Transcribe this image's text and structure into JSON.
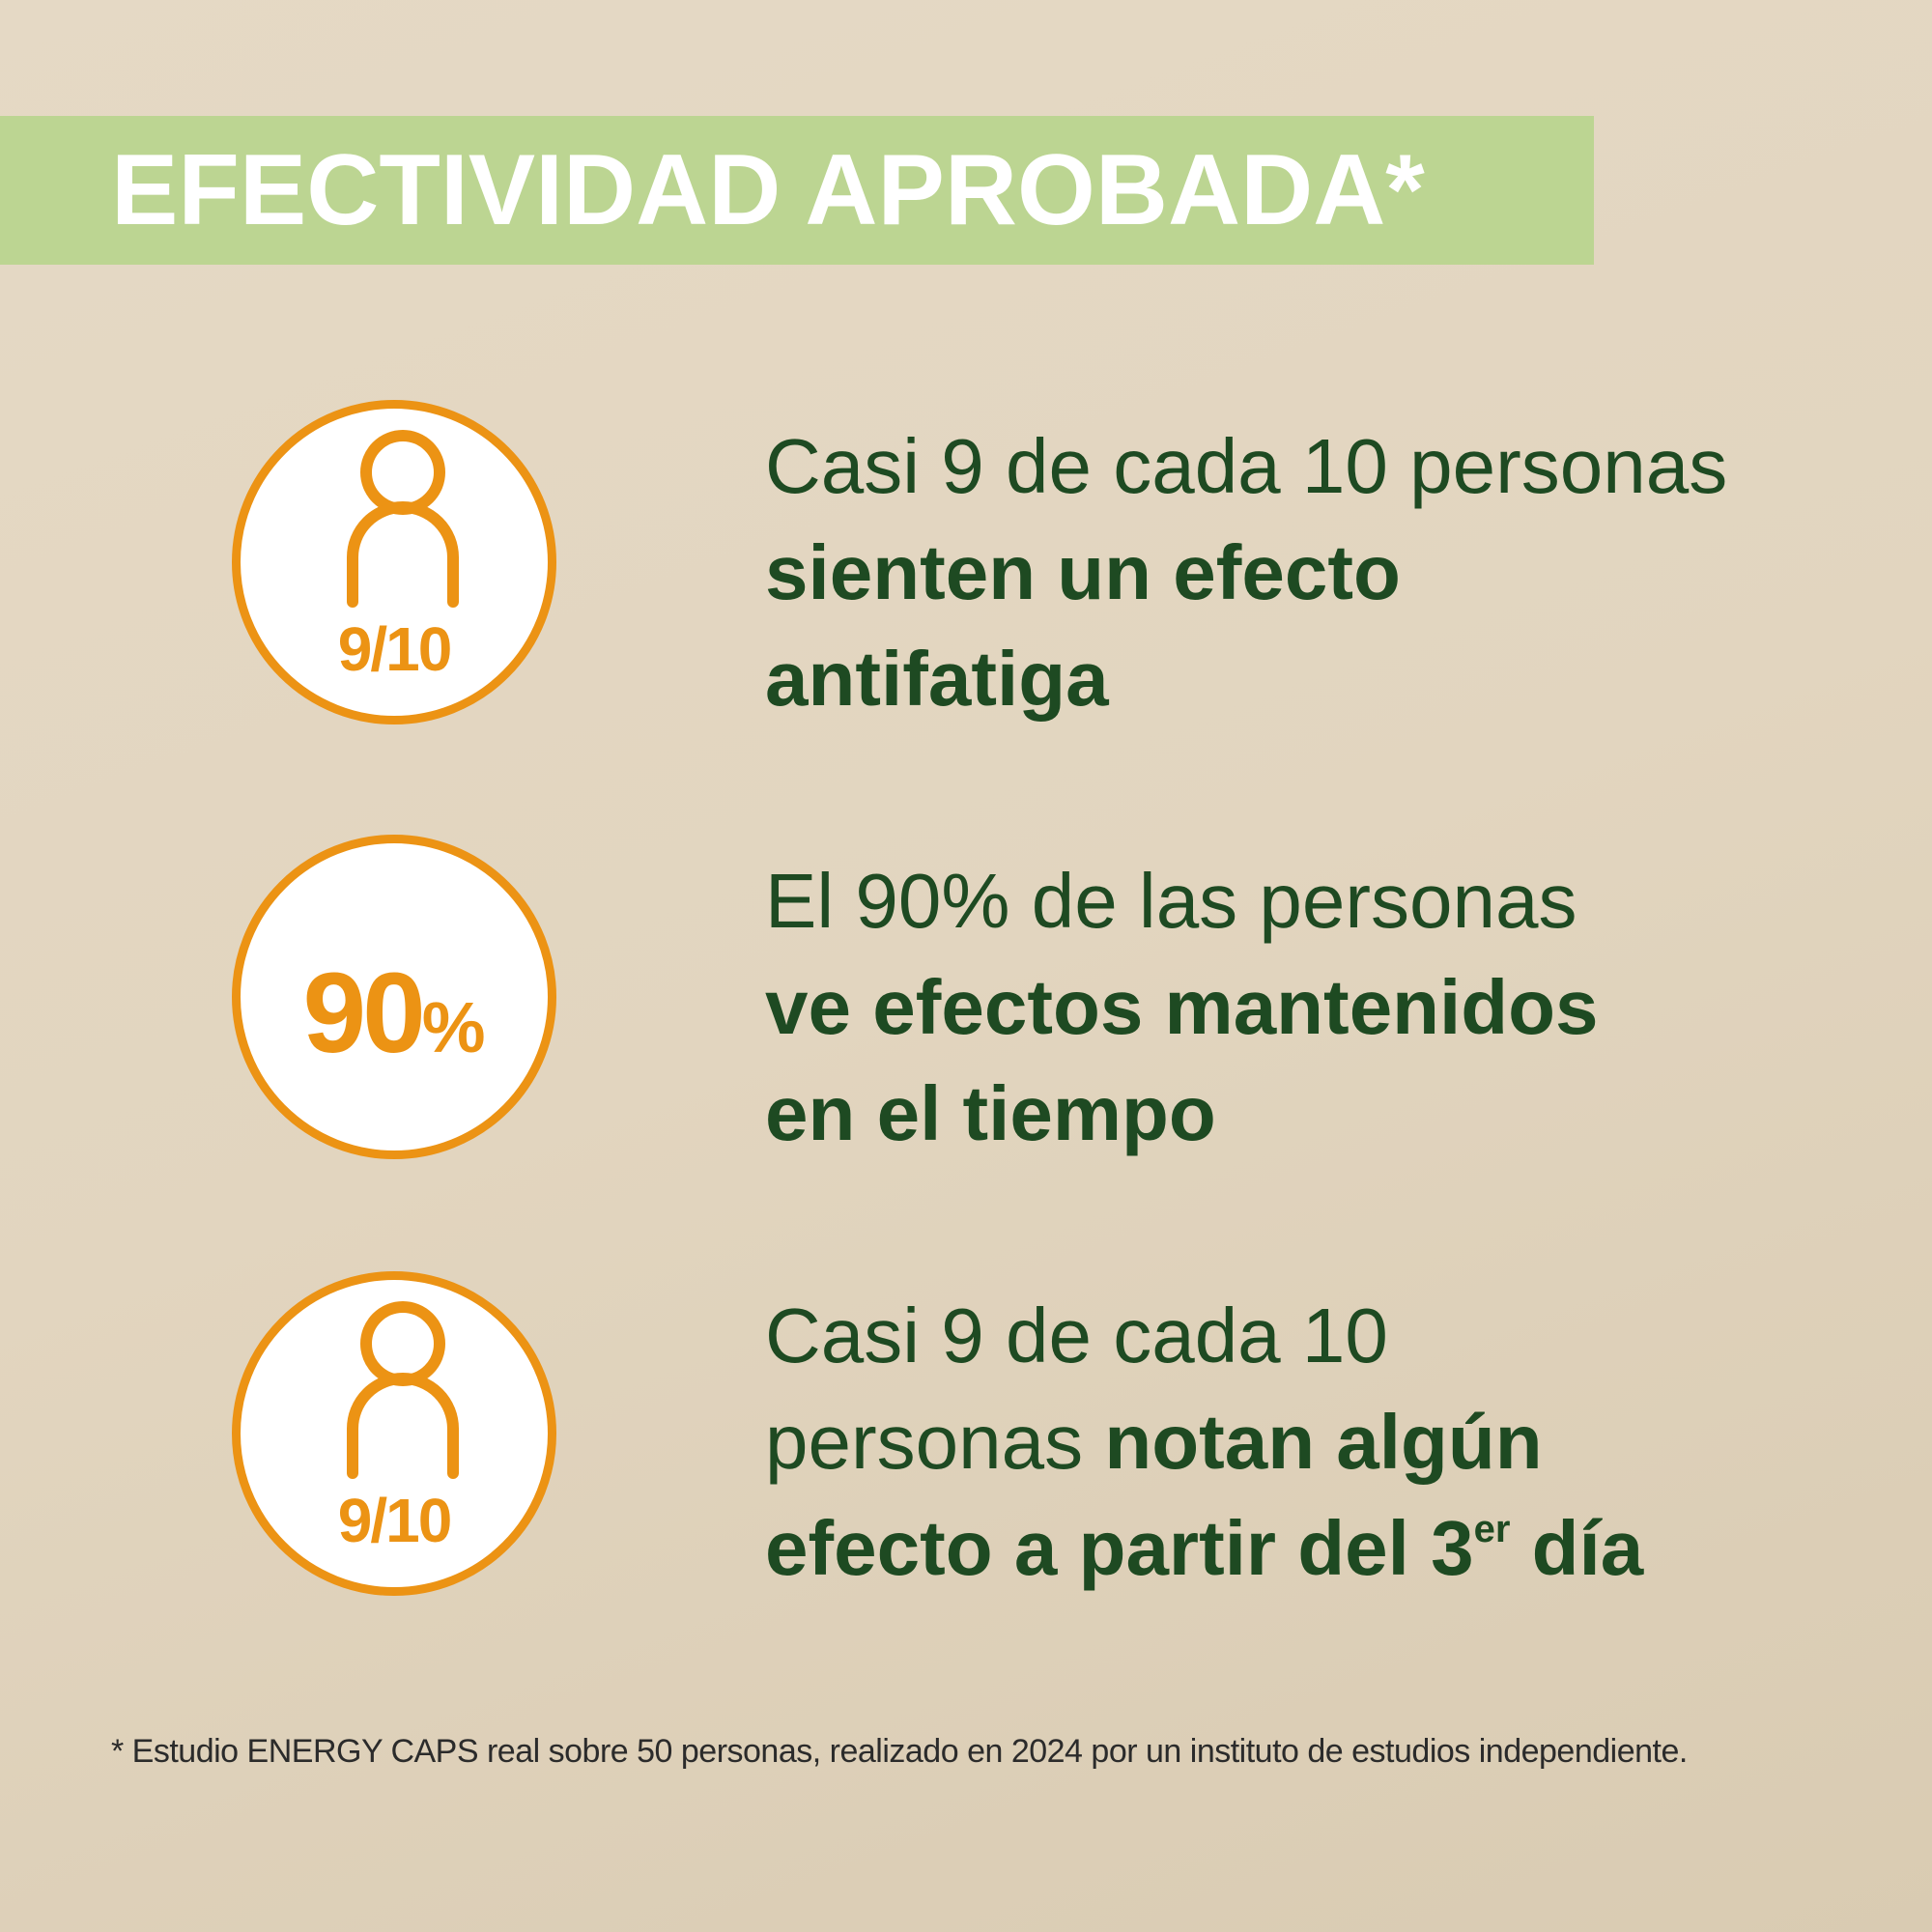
{
  "banner": {
    "title": "EFECTIVIDAD APROBADA*"
  },
  "colors": {
    "banner_bg": "#bcd592",
    "accent_orange": "#ec9314",
    "text_green": "#1e4a22"
  },
  "stats": [
    {
      "icon": "person-icon",
      "badge": "9/10",
      "line1": "Casi 9 de cada 10 personas",
      "line2": "sienten un efecto",
      "line3": "antifatiga"
    },
    {
      "icon": "percent-badge",
      "badge_number": "90",
      "badge_unit": "%",
      "line1": "El 90% de las personas",
      "line2": "ve efectos mantenidos",
      "line3": "en el tiempo"
    },
    {
      "icon": "person-icon",
      "badge": "9/10",
      "line1": "Casi 9 de cada 10",
      "line2_regular": "personas ",
      "line2_bold": "notan algún",
      "line3_pre": "efecto a partir del 3",
      "line3_sup": "er",
      "line3_post": " día"
    }
  ],
  "footnote": "* Estudio ENERGY CAPS real sobre 50 personas, realizado en 2024 por un instituto de estudios independiente."
}
